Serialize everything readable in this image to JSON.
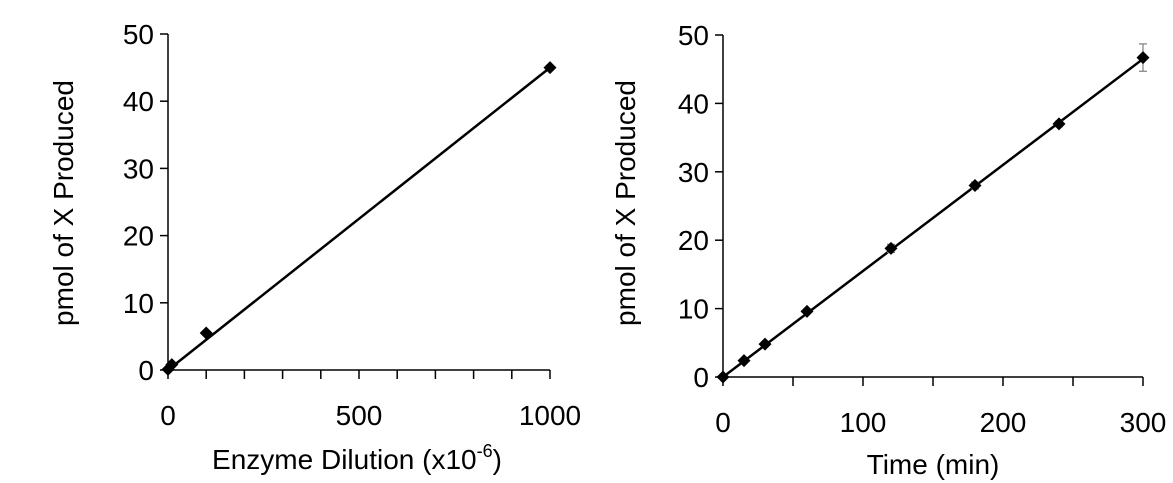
{
  "chart_data": [
    {
      "type": "scatter",
      "xlabel": "Enzyme Dilution (x10",
      "xlabel_superscript": "-6",
      "xlabel_suffix": ")",
      "ylabel": "pmol of X Produced",
      "xlim": [
        0,
        1000
      ],
      "ylim": [
        0,
        50
      ],
      "xticks": [
        0,
        500,
        1000
      ],
      "xtick_labels": [
        "0",
        "500",
        "1000"
      ],
      "yticks": [
        0,
        10,
        20,
        30,
        40,
        50
      ],
      "ytick_labels": [
        "0",
        "10",
        "20",
        "30",
        "40",
        "50"
      ],
      "grid": false,
      "series": [
        {
          "x": [
            0,
            10,
            100,
            1000
          ],
          "y": [
            0.1,
            0.8,
            5.5,
            45
          ],
          "marker": "diamond",
          "color": "#000000",
          "trendline": {
            "x": [
              0,
              1000
            ],
            "y": [
              0,
              45
            ]
          }
        }
      ]
    },
    {
      "type": "scatter",
      "xlabel": "Time (min)",
      "ylabel": "pmol of X Produced",
      "xlim": [
        0,
        300
      ],
      "ylim": [
        0,
        50
      ],
      "xticks": [
        0,
        100,
        200,
        300
      ],
      "xtick_labels": [
        "0",
        "100",
        "200",
        "300"
      ],
      "yticks": [
        0,
        10,
        20,
        30,
        40,
        50
      ],
      "ytick_labels": [
        "0",
        "10",
        "20",
        "30",
        "40",
        "50"
      ],
      "grid": false,
      "series": [
        {
          "x": [
            0,
            15,
            30,
            60,
            120,
            180,
            240,
            300
          ],
          "y": [
            0,
            2.4,
            4.8,
            9.6,
            18.8,
            28.0,
            37.0,
            46.7
          ],
          "error": [
            0.1,
            0.2,
            0.3,
            0.3,
            0.6,
            0.5,
            0.4,
            2.0
          ],
          "marker": "diamond",
          "color": "#000000",
          "trendline": {
            "x": [
              0,
              300
            ],
            "y": [
              0,
              46.5
            ]
          }
        }
      ]
    }
  ]
}
